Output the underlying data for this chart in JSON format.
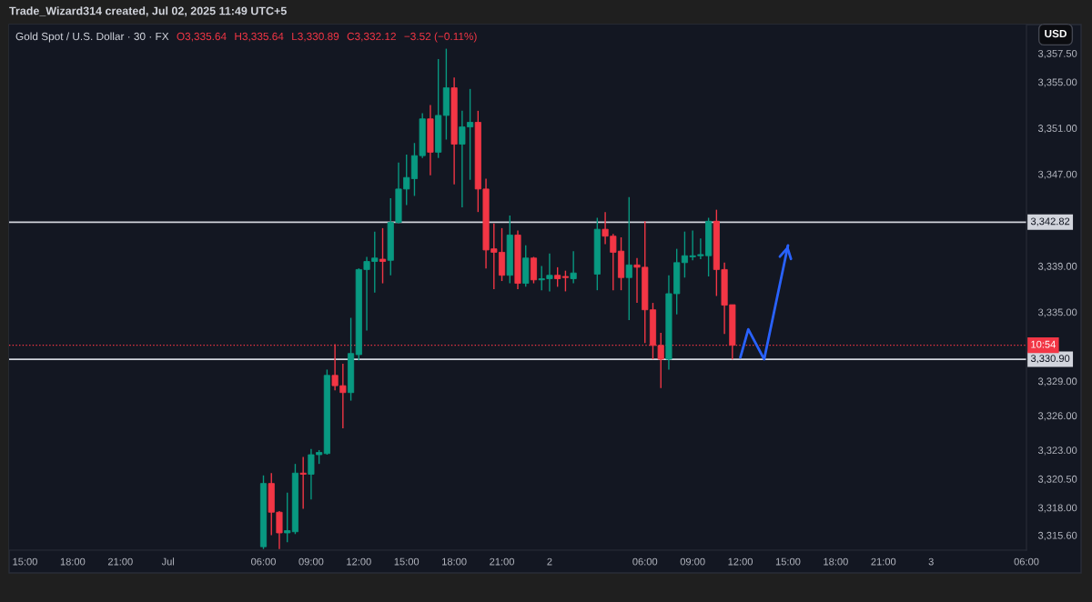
{
  "chart_data": {
    "type": "candlestick",
    "title": "Trade_Wizard314 created, Jul 02, 2025 11:49 UTC+5",
    "subtitle": "Gold Spot / U.S. Dollar · 30 · FX",
    "ylabel": "USD",
    "annotations": [
      "O3,335.64",
      "H3,335.64",
      "L3,330.89",
      "C3,332.12",
      "−3.52 (−0.11%)",
      {
        "text": "10:54",
        "y": 3332.12
      }
    ],
    "x": [
      "2025-07-01T06:00",
      "2025-07-01T06:30",
      "2025-07-01T07:00",
      "2025-07-01T07:30",
      "2025-07-01T08:00",
      "2025-07-01T08:30",
      "2025-07-01T09:00",
      "2025-07-01T09:30",
      "2025-07-01T10:00",
      "2025-07-01T10:30",
      "2025-07-01T11:00",
      "2025-07-01T11:30",
      "2025-07-01T12:00",
      "2025-07-01T12:30",
      "2025-07-01T13:00",
      "2025-07-01T13:30",
      "2025-07-01T14:00",
      "2025-07-01T14:30",
      "2025-07-01T15:00",
      "2025-07-01T15:30",
      "2025-07-01T16:00",
      "2025-07-01T16:30",
      "2025-07-01T17:00",
      "2025-07-01T17:30",
      "2025-07-01T18:00",
      "2025-07-01T18:30",
      "2025-07-01T19:00",
      "2025-07-01T19:30",
      "2025-07-01T20:00",
      "2025-07-01T20:30",
      "2025-07-01T21:00",
      "2025-07-01T21:30",
      "2025-07-01T22:00",
      "2025-07-01T22:30",
      "2025-07-01T23:00",
      "2025-07-01T23:30",
      "2025-07-02T00:00",
      "2025-07-02T00:30",
      "2025-07-02T01:00",
      "2025-07-02T01:30",
      "2025-07-02T03:00",
      "2025-07-02T03:30",
      "2025-07-02T04:00",
      "2025-07-02T04:30",
      "2025-07-02T05:00",
      "2025-07-02T05:30",
      "2025-07-02T06:00",
      "2025-07-02T06:30",
      "2025-07-02T07:00",
      "2025-07-02T07:30",
      "2025-07-02T08:00",
      "2025-07-02T08:30",
      "2025-07-02T09:00",
      "2025-07-02T09:30",
      "2025-07-02T10:00",
      "2025-07-02T10:30",
      "2025-07-02T11:00",
      "2025-07-02T11:30"
    ],
    "ohlc": [
      [
        3314.6,
        3320.8,
        3314.4,
        3320.1
      ],
      [
        3320.1,
        3321.0,
        3315.6,
        3317.6
      ],
      [
        3317.6,
        3317.7,
        3314.4,
        3315.8
      ],
      [
        3315.8,
        3319.3,
        3315.0,
        3316.0
      ],
      [
        3315.9,
        3321.8,
        3315.7,
        3321.0
      ],
      [
        3321.0,
        3322.4,
        3317.9,
        3320.9
      ],
      [
        3320.9,
        3323.1,
        3318.7,
        3322.6
      ],
      [
        3322.6,
        3323.0,
        3321.8,
        3322.8
      ],
      [
        3322.7,
        3330.0,
        3322.6,
        3329.5
      ],
      [
        3329.5,
        3332.2,
        3328.2,
        3328.6
      ],
      [
        3328.6,
        3330.5,
        3324.9,
        3328.0
      ],
      [
        3328.0,
        3334.5,
        3327.3,
        3331.4
      ],
      [
        3331.3,
        3338.8,
        3330.8,
        3338.7
      ],
      [
        3338.7,
        3339.8,
        3333.4,
        3339.4
      ],
      [
        3339.4,
        3342.0,
        3336.7,
        3339.7
      ],
      [
        3339.6,
        3342.3,
        3337.5,
        3339.4
      ],
      [
        3339.5,
        3344.9,
        3338.2,
        3342.8
      ],
      [
        3342.8,
        3348.0,
        3342.7,
        3345.7
      ],
      [
        3345.7,
        3348.7,
        3344.3,
        3346.7
      ],
      [
        3346.6,
        3349.7,
        3345.1,
        3348.6
      ],
      [
        3348.6,
        3352.3,
        3348.4,
        3351.8
      ],
      [
        3351.8,
        3353.0,
        3346.9,
        3348.9
      ],
      [
        3348.9,
        3357.0,
        3348.4,
        3352.1
      ],
      [
        3352.1,
        3357.9,
        3350.0,
        3354.5
      ],
      [
        3354.5,
        3355.4,
        3346.1,
        3349.6
      ],
      [
        3349.6,
        3352.5,
        3344.1,
        3351.1
      ],
      [
        3351.1,
        3354.4,
        3346.5,
        3351.5
      ],
      [
        3351.5,
        3352.5,
        3343.7,
        3345.7
      ],
      [
        3345.7,
        3346.6,
        3338.8,
        3340.4
      ],
      [
        3340.5,
        3342.7,
        3337.0,
        3340.2
      ],
      [
        3340.2,
        3342.3,
        3337.7,
        3338.2
      ],
      [
        3338.2,
        3343.4,
        3337.5,
        3341.7
      ],
      [
        3341.7,
        3342.1,
        3337.0,
        3337.5
      ],
      [
        3337.5,
        3340.8,
        3337.2,
        3339.7
      ],
      [
        3339.7,
        3339.8,
        3337.5,
        3337.8
      ],
      [
        3337.8,
        3339.0,
        3336.9,
        3337.9
      ],
      [
        3337.9,
        3340.1,
        3336.8,
        3338.2
      ],
      [
        3338.2,
        3338.9,
        3337.2,
        3337.9
      ],
      [
        3338.1,
        3338.6,
        3336.8,
        3338.0
      ],
      [
        3337.9,
        3340.3,
        3337.5,
        3338.4
      ],
      [
        3338.3,
        3343.2,
        3336.9,
        3342.2
      ],
      [
        3342.2,
        3343.7,
        3340.9,
        3341.6
      ],
      [
        3341.6,
        3341.8,
        3336.9,
        3340.2
      ],
      [
        3340.3,
        3341.5,
        3336.9,
        3338.0
      ],
      [
        3338.0,
        3345.0,
        3334.3,
        3339.1
      ],
      [
        3339.1,
        3339.7,
        3335.8,
        3338.9
      ],
      [
        3338.9,
        3342.9,
        3332.3,
        3335.2
      ],
      [
        3335.2,
        3335.8,
        3330.9,
        3332.1
      ],
      [
        3332.1,
        3333.2,
        3328.4,
        3330.9
      ],
      [
        3330.9,
        3338.2,
        3330.0,
        3336.6
      ],
      [
        3336.6,
        3340.5,
        3334.8,
        3339.3
      ],
      [
        3339.3,
        3342.0,
        3338.0,
        3339.9
      ],
      [
        3339.8,
        3342.1,
        3339.5,
        3339.9
      ],
      [
        3339.9,
        3341.4,
        3339.6,
        3340.0
      ],
      [
        3339.9,
        3343.2,
        3338.1,
        3342.9
      ],
      [
        3342.9,
        3343.9,
        3336.4,
        3338.7
      ],
      [
        3338.7,
        3339.3,
        3333.1,
        3335.6
      ],
      [
        3335.64,
        3335.64,
        3330.89,
        3332.12
      ]
    ],
    "colors": [
      "#089981",
      "#f23645",
      "#f23645",
      "#089981",
      "#089981",
      "#f23645",
      "#089981",
      "#089981",
      "#089981",
      "#f23645",
      "#f23645",
      "#089981",
      "#089981",
      "#089981",
      "#089981",
      "#f23645",
      "#089981",
      "#089981",
      "#089981",
      "#089981",
      "#089981",
      "#f23645",
      "#089981",
      "#089981",
      "#f23645",
      "#089981",
      "#089981",
      "#f23645",
      "#f23645",
      "#f23645",
      "#f23645",
      "#089981",
      "#f23645",
      "#089981",
      "#f23645",
      "#089981",
      "#089981",
      "#f23645",
      "#f23645",
      "#089981",
      "#089981",
      "#f23645",
      "#f23645",
      "#f23645",
      "#089981",
      "#f23645",
      "#f23645",
      "#f23645",
      "#f23645",
      "#089981",
      "#089981",
      "#089981",
      "#089981",
      "#089981",
      "#089981",
      "#f23645",
      "#f23645",
      "#f23645"
    ],
    "series": [
      {
        "type": "line",
        "color": "#2962ff",
        "x": [
          "2025-07-02T12:00",
          "2025-07-02T12:30",
          "2025-07-02T13:30",
          "2025-07-02T15:00"
        ],
        "values": [
          3331.05,
          3333.5,
          3330.9,
          3340.8
        ]
      }
    ],
    "xlim": [
      "2025-06-30T14:00",
      "2025-07-03T06:00"
    ],
    "xticks": [
      {
        "value": "2025-06-30T15:00",
        "label": "15:00"
      },
      {
        "value": "2025-06-30T18:00",
        "label": "18:00"
      },
      {
        "value": "2025-06-30T21:00",
        "label": "21:00"
      },
      {
        "value": "2025-07-01T00:00",
        "label": "Jul"
      },
      {
        "value": "2025-07-01T06:00",
        "label": "06:00"
      },
      {
        "value": "2025-07-01T09:00",
        "label": "09:00"
      },
      {
        "value": "2025-07-01T12:00",
        "label": "12:00"
      },
      {
        "value": "2025-07-01T15:00",
        "label": "15:00"
      },
      {
        "value": "2025-07-01T18:00",
        "label": "18:00"
      },
      {
        "value": "2025-07-01T21:00",
        "label": "21:00"
      },
      {
        "value": "2025-07-02T00:00",
        "label": "2"
      },
      {
        "value": "2025-07-02T06:00",
        "label": "06:00"
      },
      {
        "value": "2025-07-02T09:00",
        "label": "09:00"
      },
      {
        "value": "2025-07-02T12:00",
        "label": "12:00"
      },
      {
        "value": "2025-07-02T15:00",
        "label": "15:00"
      },
      {
        "value": "2025-07-02T18:00",
        "label": "18:00"
      },
      {
        "value": "2025-07-02T21:00",
        "label": "21:00"
      },
      {
        "value": "2025-07-03T00:00",
        "label": "3"
      },
      {
        "value": "2025-07-03T06:00",
        "label": "06:00"
      }
    ],
    "ylim": [
      3314.3,
      3360.0
    ],
    "yticks": [
      {
        "value": 3315.6,
        "label": "3,315.60"
      },
      {
        "value": 3318,
        "label": "3,318.00"
      },
      {
        "value": 3320.5,
        "label": "3,320.50"
      },
      {
        "value": 3323,
        "label": "3,323.00"
      },
      {
        "value": 3326,
        "label": "3,326.00"
      },
      {
        "value": 3329,
        "label": "3,329.00"
      },
      {
        "value": 3335,
        "label": "3,335.00"
      },
      {
        "value": 3339,
        "label": "3,339.00"
      },
      {
        "value": 3347,
        "label": "3,347.00"
      },
      {
        "value": 3351,
        "label": "3,351.00"
      },
      {
        "value": 3355,
        "label": "3,355.00"
      },
      {
        "value": 3357.5,
        "label": "3,357.50"
      }
    ],
    "ref_lines": [
      {
        "axis": "y",
        "value": 3342.82,
        "label": "3,342.82",
        "color": "#d1d4dc"
      },
      {
        "axis": "y",
        "value": 3330.9,
        "label": "3,330.90",
        "color": "#d1d4dc"
      },
      {
        "axis": "y",
        "value": 3332.12,
        "color": "#f23645",
        "line_style": "dotted"
      }
    ]
  }
}
